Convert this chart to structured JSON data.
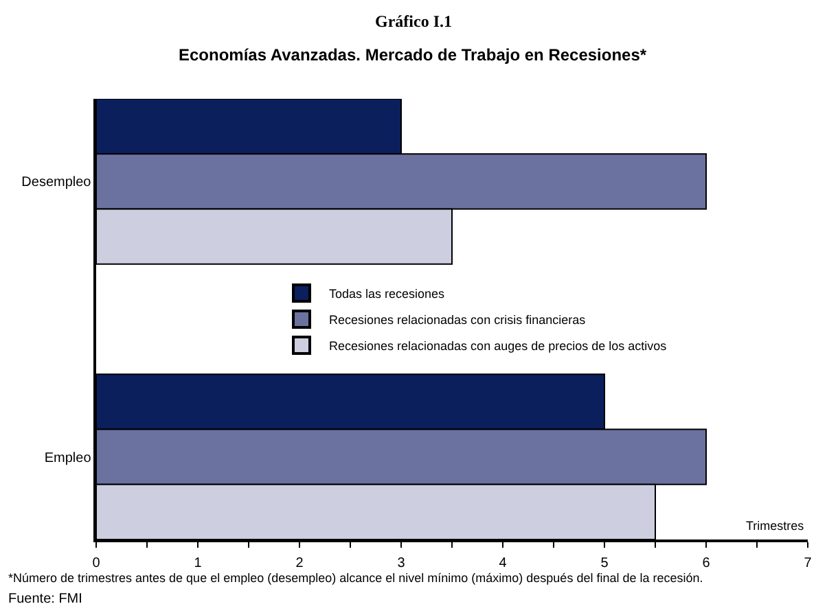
{
  "chart_data": {
    "type": "bar",
    "orientation": "horizontal",
    "title": "Gráfico I.1",
    "subtitle": "Economías Avanzadas. Mercado de Trabajo en Recesiones*",
    "xlabel": "Trimestres",
    "categories": [
      "Desempleo",
      "Empleo"
    ],
    "series": [
      {
        "name": "Todas las recesiones",
        "color": "#0a1f5c",
        "values": [
          3,
          5
        ]
      },
      {
        "name": "Recesiones relacionadas con crisis financieras",
        "color": "#6b72a0",
        "values": [
          6,
          6
        ]
      },
      {
        "name": "Recesiones relacionadas con auges de precios de los activos",
        "color": "#cdcfe0",
        "values": [
          3.5,
          5.5
        ]
      }
    ],
    "xlim": [
      0,
      7
    ],
    "xticks": [
      0,
      {
        "value": 0.5,
        "label": null
      },
      1,
      {
        "value": 1.5,
        "label": null
      },
      2,
      {
        "value": 2.5,
        "label": null
      },
      3,
      {
        "value": 3.5,
        "label": null
      },
      4,
      {
        "value": 4.5,
        "label": null
      },
      5,
      {
        "value": 5.5,
        "label": null
      },
      6,
      {
        "value": 6.5,
        "label": null
      },
      7
    ],
    "legend": "center",
    "annotations": [
      "*Número de trimestres antes de que el empleo (desempleo) alcance el nivel mínimo (máximo) después del final de la recesión.",
      "Fuente: FMI"
    ]
  }
}
